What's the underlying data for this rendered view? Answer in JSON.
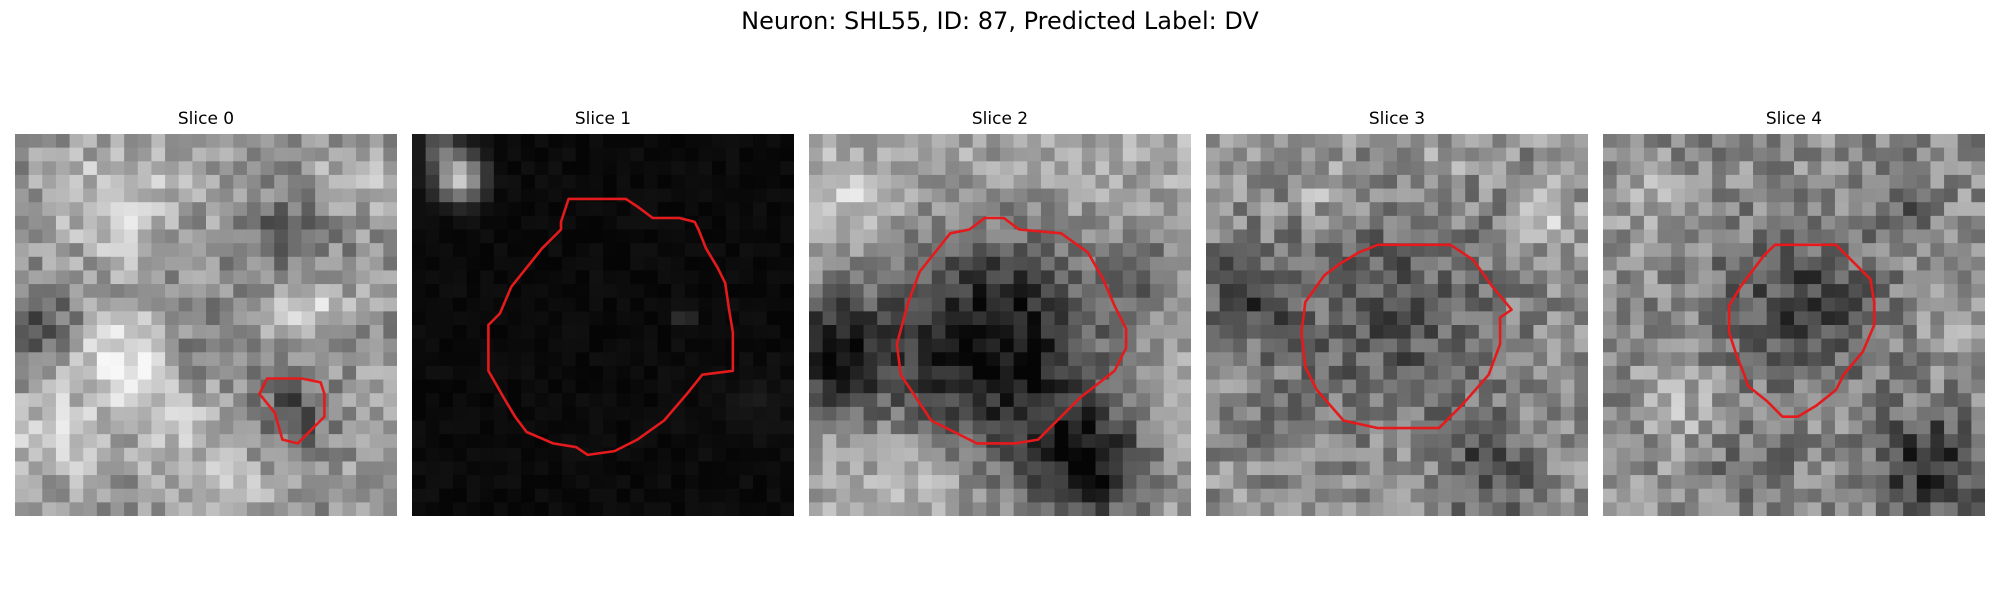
{
  "figure": {
    "title": "Neuron: SHL55, ID: 87, Predicted Label: DV"
  },
  "panels": [
    {
      "title": "Slice 0"
    },
    {
      "title": "Slice 1"
    },
    {
      "title": "Slice 2"
    },
    {
      "title": "Slice 3"
    },
    {
      "title": "Slice 4"
    }
  ],
  "colors": {
    "contour": "#e41a1c",
    "background": "#ffffff"
  }
}
